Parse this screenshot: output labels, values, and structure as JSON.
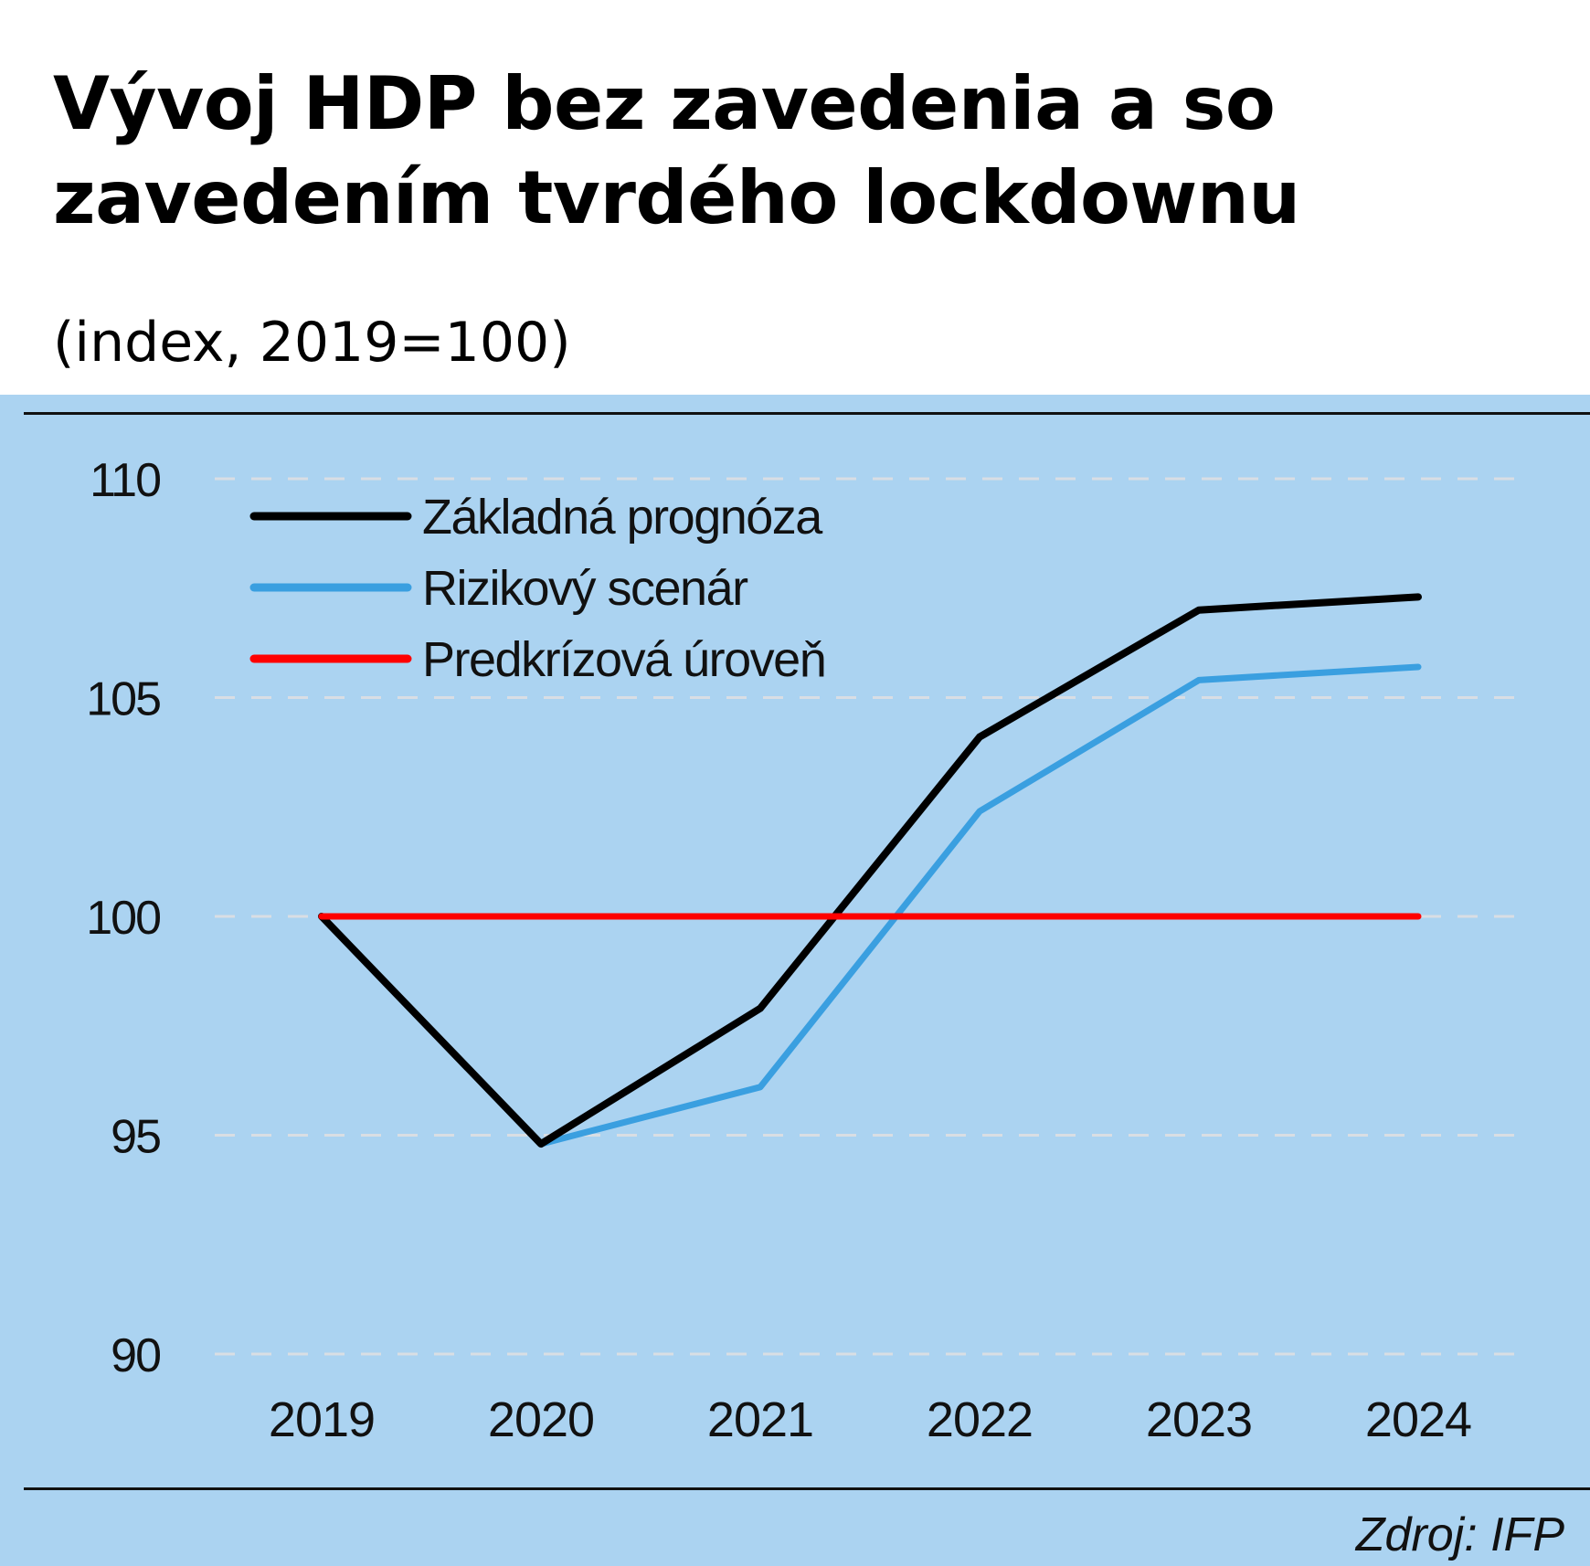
{
  "title_line1": "Vývoj HDP bez zavedenia a so",
  "title_line2": "zavedením tvrdého lockdownu",
  "subtitle": "(index, 2019=100)",
  "source": "Zdroj:  IFP",
  "colors": {
    "background": "#abd3f1",
    "base": "#000000",
    "risk": "#3a9fe0",
    "precrisis": "#ff0000",
    "grid": "#d9dee4"
  },
  "chart_data": {
    "type": "line",
    "title": "Vývoj HDP bez zavedenia a so zavedením tvrdého lockdownu",
    "subtitle": "(index, 2019=100)",
    "categories": [
      "2019",
      "2020",
      "2021",
      "2022",
      "2023",
      "2024"
    ],
    "ylim": [
      90,
      110
    ],
    "yticks": [
      90,
      95,
      100,
      105,
      110
    ],
    "grid": "horizontal dashed",
    "legend_placement": "top-left",
    "series": [
      {
        "name": "Základná prognóza",
        "color": "#000000",
        "values": [
          100,
          94.8,
          97.9,
          104.1,
          107.0,
          107.3
        ]
      },
      {
        "name": "Rizikový scenár",
        "color": "#3a9fe0",
        "values": [
          100,
          94.8,
          96.1,
          102.4,
          105.4,
          105.7
        ]
      },
      {
        "name": "Predkrízová úroveň",
        "color": "#ff0000",
        "values": [
          100,
          100,
          100,
          100,
          100,
          100
        ]
      }
    ]
  }
}
